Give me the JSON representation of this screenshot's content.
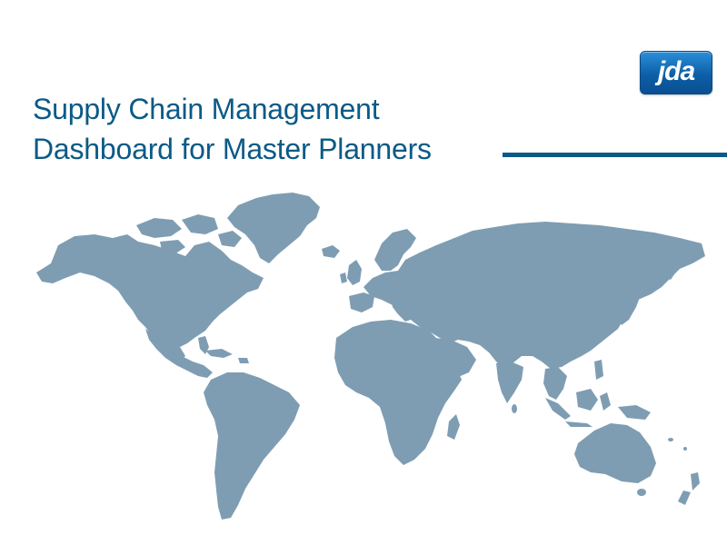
{
  "logo": {
    "text": "jda",
    "colors": {
      "top": "#2a8fd8",
      "bottom": "#0a4f91"
    }
  },
  "title": {
    "lines": [
      "Supply Chain Management",
      "Dashboard for Master Planners"
    ],
    "color": "#0b5a86"
  },
  "map": {
    "land_color": "#7e9db3",
    "icon": "world-map"
  }
}
